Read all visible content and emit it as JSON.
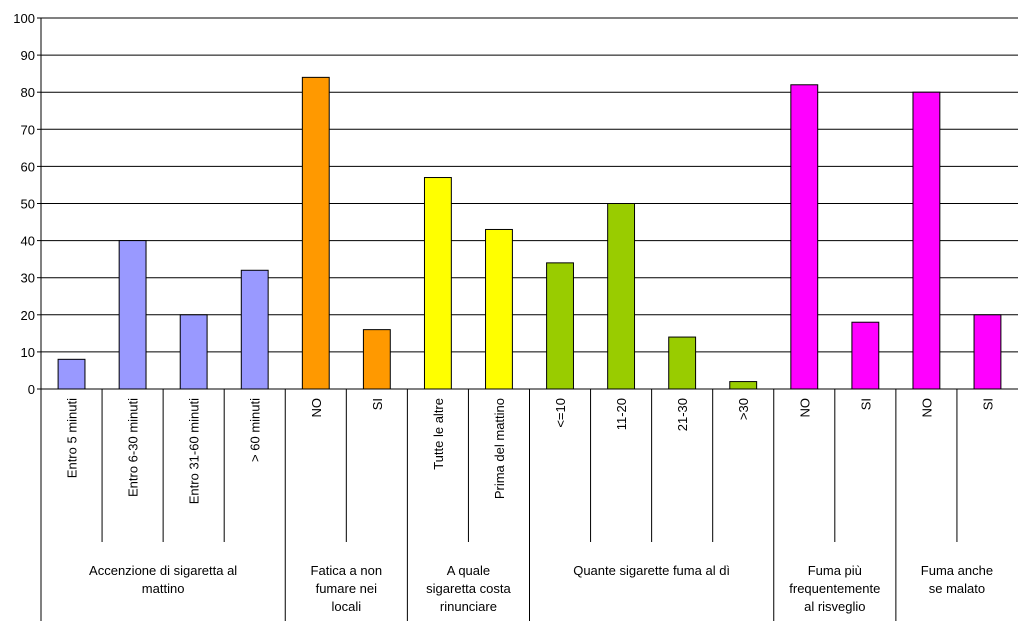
{
  "chart_data": {
    "type": "bar",
    "ylim": [
      0,
      100
    ],
    "yticks": [
      0,
      10,
      20,
      30,
      40,
      50,
      60,
      70,
      80,
      90,
      100
    ],
    "grid": true,
    "groups": [
      {
        "label_lines": [
          "Accenzione di sigaretta al",
          "mattino"
        ],
        "color": "#9999ff",
        "categories": [
          "Entro 5 minuti",
          "Entro 6-30 minuti",
          "Entro 31-60 minuti",
          "> 60 minuti"
        ],
        "values": [
          8,
          40,
          20,
          32
        ]
      },
      {
        "label_lines": [
          "Fatica a non",
          "fumare nei",
          "locali"
        ],
        "color": "#ff9900",
        "categories": [
          "NO",
          "SI"
        ],
        "values": [
          84,
          16
        ]
      },
      {
        "label_lines": [
          "A quale",
          "sigaretta costa",
          "rinunciare"
        ],
        "color": "#ffff00",
        "categories": [
          "Tutte le altre",
          "Prima del mattino"
        ],
        "values": [
          57,
          43
        ]
      },
      {
        "label_lines": [
          "Quante sigarette fuma al dì"
        ],
        "color": "#99cc00",
        "categories": [
          "<=10",
          "11-20",
          "21-30",
          ">30"
        ],
        "values": [
          34,
          50,
          14,
          2
        ]
      },
      {
        "label_lines": [
          "Fuma più",
          "frequentemente",
          "al risveglio"
        ],
        "color": "#ff00ff",
        "categories": [
          "NO",
          "SI"
        ],
        "values": [
          82,
          18
        ]
      },
      {
        "label_lines": [
          "Fuma anche",
          "se malato"
        ],
        "color": "#ff00ff",
        "categories": [
          "NO",
          "SI"
        ],
        "values": [
          80,
          20
        ]
      }
    ]
  }
}
